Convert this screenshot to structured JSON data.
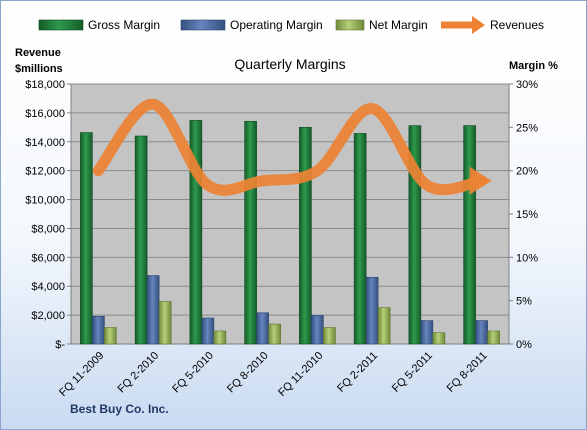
{
  "brand": "Best Buy Co. Inc.",
  "colors": {
    "gross_margin": "#1e7d3c",
    "operating_margin": "#4f6fa8",
    "net_margin": "#9bbb59",
    "revenues": "#ed8234",
    "plot_bg": "#c4c4c4"
  },
  "chart_data": {
    "type": "bar",
    "title": "Quarterly Margins",
    "ylabel_left": "Revenue $millions",
    "ylabel_right": "Margin %",
    "ylim_left": [
      0,
      18000
    ],
    "ylim_right": [
      0,
      30
    ],
    "yticks_left": [
      "$-",
      "$2,000",
      "$4,000",
      "$6,000",
      "$8,000",
      "$10,000",
      "$12,000",
      "$14,000",
      "$16,000",
      "$18,000"
    ],
    "yticks_right": [
      "0%",
      "5%",
      "10%",
      "15%",
      "20%",
      "25%",
      "30%"
    ],
    "grid": true,
    "legend_position": "top",
    "categories": [
      "FQ 11-2009",
      "FQ 2-2010",
      "FQ 5-2010",
      "FQ 8-2010",
      "FQ 11-2010",
      "FQ 2-2011",
      "FQ 5-2011",
      "FQ 8-2011"
    ],
    "series": [
      {
        "name": "Gross Margin",
        "axis": "right",
        "type": "bar",
        "values": [
          24.4,
          24.0,
          25.8,
          25.7,
          25.0,
          24.3,
          25.2,
          25.2
        ]
      },
      {
        "name": "Operating Margin",
        "axis": "right",
        "type": "bar",
        "values": [
          3.2,
          7.9,
          3.0,
          3.6,
          3.3,
          7.7,
          2.7,
          2.7
        ]
      },
      {
        "name": "Net Margin",
        "axis": "right",
        "type": "bar",
        "values": [
          1.9,
          4.9,
          1.5,
          2.3,
          1.9,
          4.2,
          1.3,
          1.5
        ]
      },
      {
        "name": "Revenues",
        "axis": "left",
        "type": "line",
        "values": [
          12000,
          16600,
          11000,
          11300,
          12000,
          16300,
          11000,
          11300
        ]
      }
    ]
  }
}
